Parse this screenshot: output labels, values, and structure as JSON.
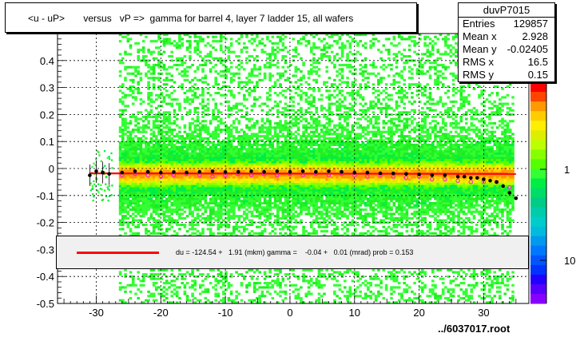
{
  "title": "<u - uP>       versus   vP =>  gamma for barrel 4, layer 7 ladder 15, all wafers",
  "stats": {
    "name": "duvP7015",
    "rows": [
      {
        "key": "Entries",
        "value": "129857"
      },
      {
        "key": "Mean x",
        "value": "2.928"
      },
      {
        "key": "Mean y",
        "value": "-0.02405"
      },
      {
        "key": "RMS x",
        "value": "16.5"
      },
      {
        "key": "RMS y",
        "value": "0.15"
      }
    ]
  },
  "fit_text": "du = -124.54 +   1.91 (mkm) gamma =    -0.04 +   0.01 (mrad) prob = 0.153",
  "file_label": "../6037017.root",
  "colors": {
    "fit_line": "#ff0000",
    "profile_black": "#000000",
    "profile_magenta": "#ff00ff"
  },
  "chart_data": {
    "type": "heatmap",
    "xlim": [
      -36,
      37
    ],
    "ylim": [
      -0.5,
      0.5
    ],
    "x_ticks": [
      -30,
      -20,
      -10,
      0,
      10,
      20,
      30
    ],
    "x_tick_labels": [
      "-30",
      "-20",
      "-10",
      "0",
      "10",
      "20",
      "30"
    ],
    "y_ticks": [
      -0.5,
      -0.4,
      -0.3,
      -0.2,
      -0.1,
      0,
      0.1,
      0.2,
      0.3,
      0.4
    ],
    "y_tick_labels": [
      "-0.5",
      "-0.4",
      "-0.3",
      "-0.2",
      "-0.1",
      "0",
      "0.1",
      "0.2",
      "0.3",
      "0.4"
    ],
    "grid": true,
    "z_scale": "log",
    "z_tick_labels": [
      "1",
      "10"
    ],
    "fit_line": {
      "x": [
        -31,
        35
      ],
      "y": [
        -0.018,
        -0.02
      ]
    },
    "profile_black": {
      "x": [
        -31,
        -30,
        -29,
        -28,
        -26,
        -24,
        -22,
        -20,
        -18,
        -16,
        -14,
        -12,
        -10,
        -8,
        -6,
        -4,
        -2,
        0,
        2,
        4,
        6,
        8,
        10,
        12,
        14,
        16,
        18,
        20,
        22,
        24,
        26,
        27,
        28,
        29,
        30,
        31,
        32,
        33,
        34,
        35
      ],
      "y": [
        -0.025,
        -0.01,
        -0.015,
        -0.02,
        -0.015,
        -0.01,
        -0.012,
        -0.015,
        -0.013,
        -0.015,
        -0.012,
        -0.01,
        -0.013,
        -0.012,
        -0.01,
        -0.012,
        -0.01,
        -0.012,
        -0.01,
        -0.012,
        -0.01,
        -0.012,
        -0.015,
        -0.015,
        -0.018,
        -0.018,
        -0.02,
        -0.022,
        -0.025,
        -0.025,
        -0.03,
        -0.03,
        -0.035,
        -0.035,
        -0.04,
        -0.045,
        -0.05,
        -0.065,
        -0.09,
        -0.11
      ]
    },
    "profile_magenta": {
      "x": [
        -26,
        -24,
        -22,
        -20,
        -18,
        -16,
        -14,
        -12,
        -10,
        -8,
        -6,
        -4,
        -2,
        0,
        2,
        4,
        6,
        8,
        10,
        12,
        14,
        16,
        18,
        20,
        22,
        24,
        26,
        28,
        30,
        32,
        34
      ],
      "y": [
        -0.025,
        -0.02,
        -0.025,
        -0.03,
        -0.025,
        -0.02,
        -0.025,
        -0.03,
        -0.025,
        -0.02,
        -0.025,
        -0.02,
        -0.025,
        -0.02,
        -0.025,
        -0.02,
        -0.025,
        -0.02,
        -0.025,
        -0.03,
        -0.025,
        -0.03,
        -0.035,
        -0.03,
        -0.04,
        -0.04,
        -0.045,
        -0.05,
        -0.05,
        -0.05,
        -0.07
      ]
    }
  }
}
